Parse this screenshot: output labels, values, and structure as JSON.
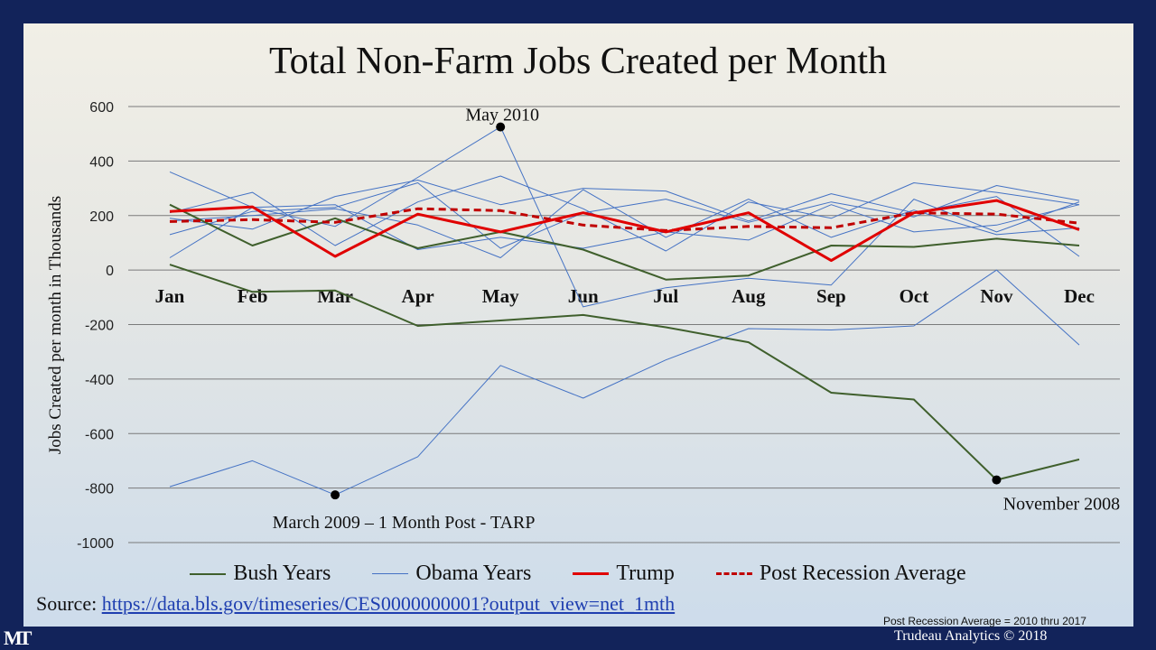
{
  "chart_data": {
    "type": "line",
    "title": "Total Non-Farm Jobs Created per Month",
    "ylabel": "Jobs Created per month in Thousands",
    "xlabel": "",
    "categories": [
      "Jan",
      "Feb",
      "Mar",
      "Apr",
      "May",
      "Jun",
      "Jul",
      "Aug",
      "Sep",
      "Oct",
      "Nov",
      "Dec"
    ],
    "ylim": [
      -1000,
      600
    ],
    "yticks": [
      600,
      400,
      200,
      0,
      -200,
      -400,
      -600,
      -800,
      -1000
    ],
    "grid": true,
    "legend_position": "bottom",
    "series": [
      {
        "name": "Bush Years",
        "color": "#3f5f2c",
        "style": "solid",
        "width": 2,
        "lines": [
          [
            240,
            90,
            190,
            80,
            140,
            75,
            -35,
            -20,
            90,
            85,
            115,
            90
          ],
          [
            20,
            -80,
            -75,
            -205,
            -185,
            -165,
            -210,
            -265,
            -450,
            -475,
            -770,
            -695
          ]
        ]
      },
      {
        "name": "Obama Years",
        "color": "#4472c4",
        "style": "solid",
        "width": 1,
        "lines": [
          [
            -795,
            -700,
            -825,
            -685,
            -350,
            -470,
            -330,
            -215,
            -220,
            -205,
            0,
            -275
          ],
          [
            45,
            230,
            160,
            340,
            525,
            -135,
            -65,
            -30,
            -55,
            260,
            140,
            250
          ],
          [
            130,
            215,
            230,
            320,
            80,
            210,
            260,
            175,
            250,
            195,
            310,
            255
          ],
          [
            360,
            230,
            240,
            75,
            120,
            80,
            140,
            110,
            240,
            140,
            165,
            240
          ],
          [
            190,
            150,
            270,
            330,
            240,
            300,
            290,
            180,
            280,
            210,
            270,
            50
          ],
          [
            210,
            285,
            90,
            250,
            345,
            225,
            70,
            250,
            190,
            320,
            285,
            240
          ],
          [
            180,
            200,
            225,
            165,
            45,
            295,
            120,
            260,
            120,
            220,
            130,
            155
          ]
        ]
      },
      {
        "name": "Trump",
        "color": "#e00000",
        "style": "solid",
        "width": 3,
        "lines": [
          [
            215,
            232,
            50,
            205,
            140,
            210,
            140,
            210,
            35,
            210,
            255,
            148
          ]
        ]
      },
      {
        "name": "Post Recession Average",
        "color": "#c00000",
        "style": "dashed",
        "width": 3,
        "lines": [
          [
            178,
            185,
            175,
            225,
            218,
            165,
            145,
            160,
            155,
            210,
            205,
            172
          ]
        ]
      }
    ],
    "annotations": [
      {
        "text": "May 2010",
        "x": "May",
        "y": 525
      },
      {
        "text": "March 2009 – 1 Month Post - TARP",
        "x": "Mar",
        "y": -825
      },
      {
        "text": "November 2008",
        "x": "Nov",
        "y": -770
      }
    ]
  },
  "source": {
    "label": "Source: ",
    "link": "https://data.bls.gov/timeseries/CES0000000001?output_view=net_1mth"
  },
  "footnote": "Post Recession Average  = 2010 thru 2017",
  "copyright": "Trudeau Analytics © 2018",
  "logo": "MT",
  "colors": {
    "frame": "#12235a",
    "gridline": "#7a7a7a"
  }
}
